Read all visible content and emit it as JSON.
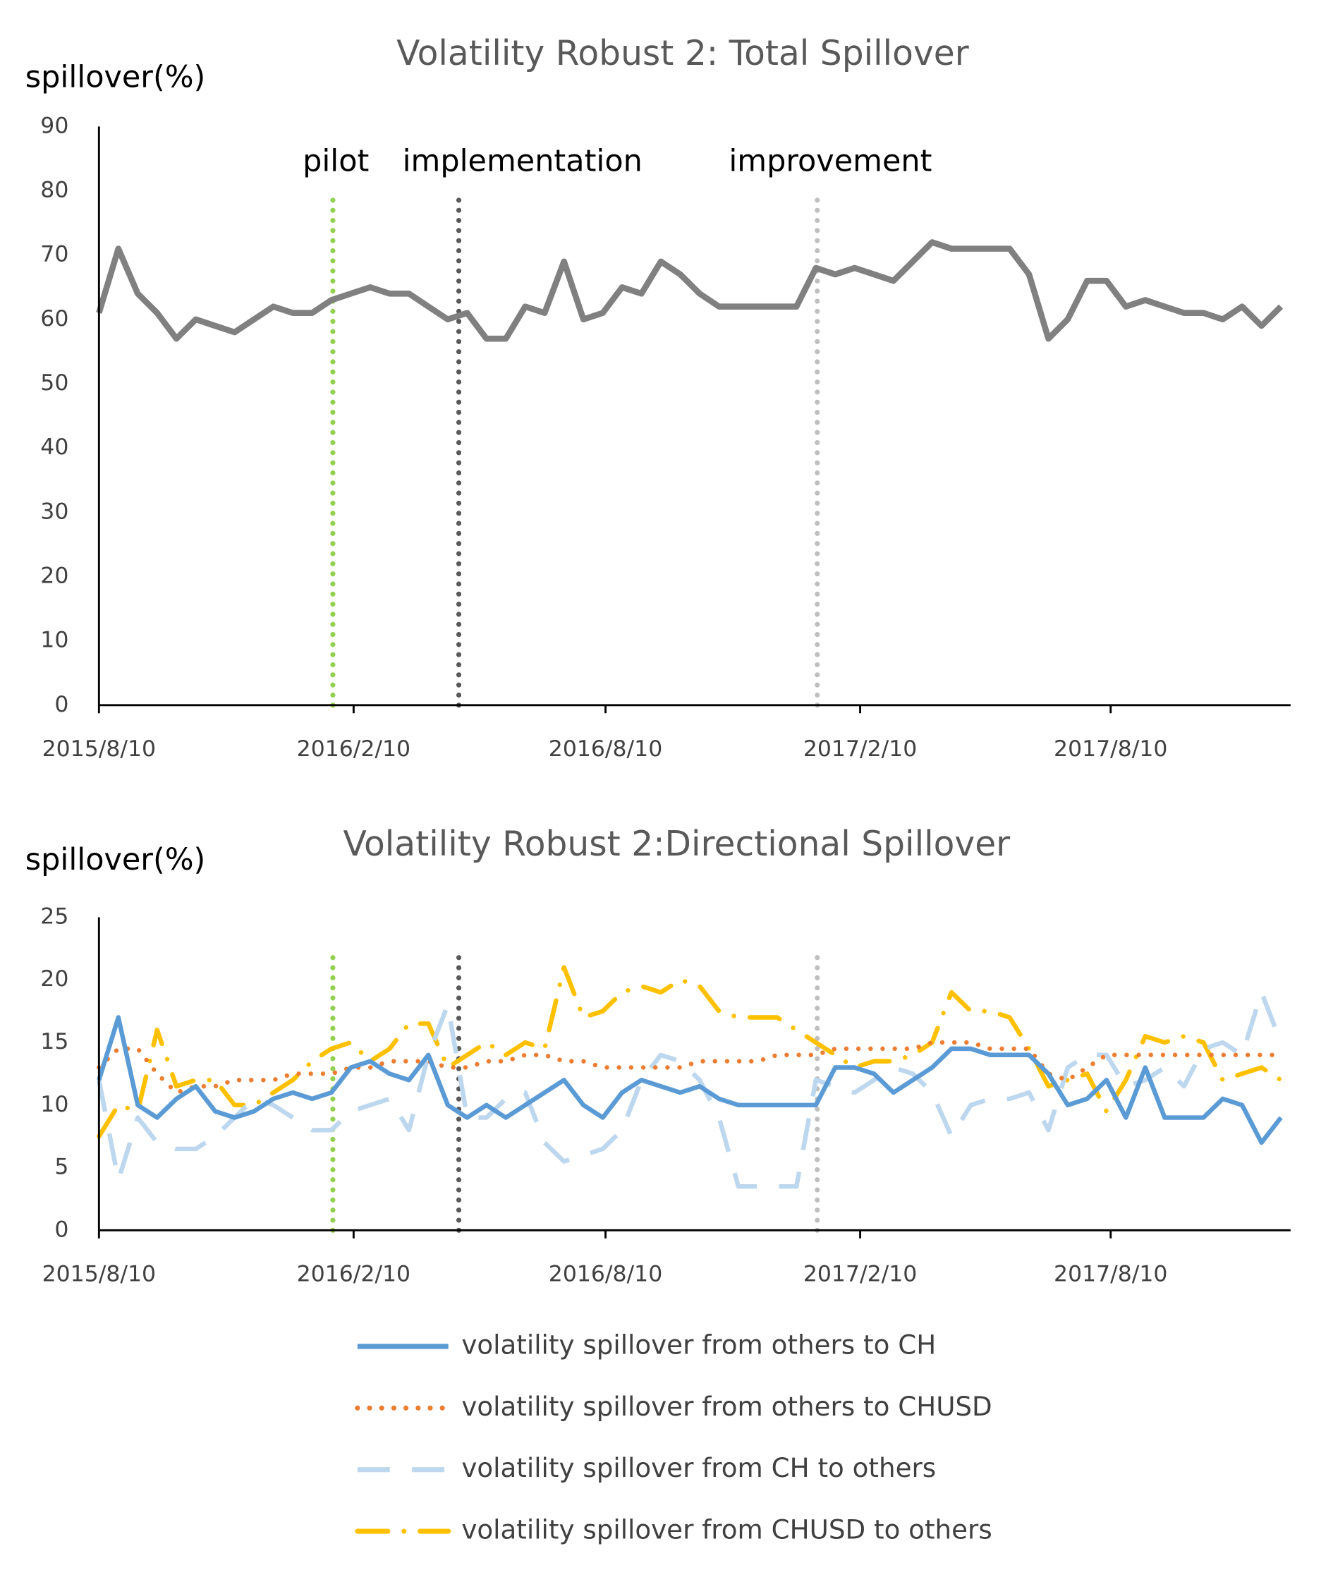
{
  "chart_data": [
    {
      "type": "line",
      "title": "Volatility Robust 2: Total Spillover",
      "ylabel": "spillover(%)",
      "x": [
        "2015/8/10",
        "2015/8/24",
        "2015/9/7",
        "2015/9/21",
        "2015/10/5",
        "2015/10/19",
        "2015/11/2",
        "2015/11/16",
        "2015/11/30",
        "2015/12/14",
        "2015/12/28",
        "2016/1/11",
        "2016/1/25",
        "2016/2/8",
        "2016/2/22",
        "2016/3/7",
        "2016/3/21",
        "2016/4/4",
        "2016/4/18",
        "2016/5/2",
        "2016/5/16",
        "2016/5/30",
        "2016/6/13",
        "2016/6/27",
        "2016/7/11",
        "2016/7/25",
        "2016/8/8",
        "2016/8/22",
        "2016/9/5",
        "2016/9/19",
        "2016/10/3",
        "2016/10/17",
        "2016/10/31",
        "2016/11/14",
        "2016/11/28",
        "2016/12/12",
        "2016/12/26",
        "2017/1/9",
        "2017/1/23",
        "2017/2/6",
        "2017/2/20",
        "2017/3/6",
        "2017/3/20",
        "2017/4/3",
        "2017/4/17",
        "2017/5/1",
        "2017/5/15",
        "2017/5/29",
        "2017/6/12",
        "2017/6/26",
        "2017/7/10",
        "2017/7/24",
        "2017/8/7",
        "2017/8/21",
        "2017/9/4",
        "2017/9/18",
        "2017/10/2",
        "2017/10/16",
        "2017/10/30",
        "2017/11/13",
        "2017/11/27",
        "2017/12/11"
      ],
      "series": [
        {
          "color": "#808080",
          "style": "solid",
          "values": [
            61,
            71,
            64,
            61,
            57,
            60,
            59,
            58,
            60,
            62,
            61,
            61,
            63,
            64,
            65,
            64,
            64,
            62,
            60,
            61,
            57,
            57,
            62,
            61,
            69,
            60,
            61,
            65,
            64,
            69,
            67,
            64,
            62,
            62,
            62,
            62,
            62,
            68,
            67,
            68,
            67,
            66,
            69,
            72,
            71,
            71,
            71,
            71,
            67,
            57,
            60,
            66,
            66,
            62,
            63,
            62,
            61,
            61,
            60,
            62,
            59,
            62
          ]
        }
      ],
      "xlim": [
        "2015/8/10",
        "2017/12/18"
      ],
      "xticks": [
        "2015/8/10",
        "2016/2/10",
        "2016/8/10",
        "2017/2/10",
        "2017/8/10"
      ],
      "ylim": [
        0,
        90
      ],
      "yticks": [
        0,
        10,
        20,
        30,
        40,
        50,
        60,
        70,
        80,
        90
      ],
      "grid": false,
      "events": [
        {
          "label": "pilot",
          "x": "2016/1/26",
          "color": "#92d050"
        },
        {
          "label": "implementation",
          "x": "2016/4/26",
          "color": "#595959"
        },
        {
          "label": "improvement",
          "x": "2017/1/10",
          "color": "#bfbfbf"
        }
      ]
    },
    {
      "type": "line",
      "title": "Volatility Robust 2:Directional  Spillover",
      "ylabel": "spillover(%)",
      "x": [
        "2015/8/10",
        "2015/8/24",
        "2015/9/7",
        "2015/9/21",
        "2015/10/5",
        "2015/10/19",
        "2015/11/2",
        "2015/11/16",
        "2015/11/30",
        "2015/12/14",
        "2015/12/28",
        "2016/1/11",
        "2016/1/25",
        "2016/2/8",
        "2016/2/22",
        "2016/3/7",
        "2016/3/21",
        "2016/4/4",
        "2016/4/18",
        "2016/5/2",
        "2016/5/16",
        "2016/5/30",
        "2016/6/13",
        "2016/6/27",
        "2016/7/11",
        "2016/7/25",
        "2016/8/8",
        "2016/8/22",
        "2016/9/5",
        "2016/9/19",
        "2016/10/3",
        "2016/10/17",
        "2016/10/31",
        "2016/11/14",
        "2016/11/28",
        "2016/12/12",
        "2016/12/26",
        "2017/1/9",
        "2017/1/23",
        "2017/2/6",
        "2017/2/20",
        "2017/3/6",
        "2017/3/20",
        "2017/4/3",
        "2017/4/17",
        "2017/5/1",
        "2017/5/15",
        "2017/5/29",
        "2017/6/12",
        "2017/6/26",
        "2017/7/10",
        "2017/7/24",
        "2017/8/7",
        "2017/8/21",
        "2017/9/4",
        "2017/9/18",
        "2017/10/2",
        "2017/10/16",
        "2017/10/30",
        "2017/11/13",
        "2017/11/27",
        "2017/12/11"
      ],
      "series": [
        {
          "name": "volatility spillover from others to CH",
          "color": "#5b9bd5",
          "style": "solid",
          "values": [
            12,
            17,
            10,
            9,
            10.5,
            11.5,
            9.5,
            9,
            9.5,
            10.5,
            11,
            10.5,
            11,
            13,
            13.5,
            12.5,
            12,
            14,
            10,
            9,
            10,
            9,
            10,
            11,
            12,
            10,
            9,
            11,
            12,
            11.5,
            11,
            11.5,
            10.5,
            10,
            10,
            10,
            10,
            10,
            13,
            13,
            12.5,
            11,
            12,
            13,
            14.5,
            14.5,
            14,
            14,
            14,
            12.5,
            10,
            10.5,
            12,
            9,
            13,
            9,
            9,
            9,
            10.5,
            10,
            7,
            9
          ]
        },
        {
          "name": "volatility spillover from others to CHUSD",
          "color": "#ed7d31",
          "style": "dotted",
          "values": [
            13,
            14.5,
            14.5,
            12.5,
            11,
            11.5,
            11.5,
            12,
            12,
            12,
            12.5,
            12.5,
            12.5,
            13,
            13,
            13.5,
            13.5,
            13.5,
            13,
            13,
            13.5,
            13.5,
            14,
            14,
            13.5,
            13.5,
            13,
            13,
            13,
            13,
            13,
            13.5,
            13.5,
            13.5,
            13.5,
            14,
            14,
            14,
            14.5,
            14.5,
            14.5,
            14.5,
            14.5,
            15,
            15,
            15,
            14.5,
            14.5,
            14.5,
            12.5,
            12,
            13,
            14,
            14,
            14,
            14,
            14,
            14,
            14,
            14,
            14,
            14
          ]
        },
        {
          "name": "volatility spillover from CH to others",
          "color": "#bdd7ee",
          "style": "dashed",
          "values": [
            12,
            4,
            9,
            7,
            6.5,
            6.5,
            7.5,
            9,
            10.5,
            10,
            9,
            8,
            8,
            9.5,
            10,
            10.5,
            8,
            14,
            18,
            9,
            9,
            10.5,
            11,
            7,
            5.5,
            6,
            6.5,
            8,
            12,
            14,
            13.5,
            12,
            9,
            3.5,
            3.5,
            3.5,
            3.5,
            12,
            11.5,
            11,
            12,
            13,
            12.5,
            11,
            7.5,
            10,
            10.5,
            10.5,
            11,
            8,
            13,
            14,
            14,
            11.5,
            12,
            13,
            11.5,
            14.5,
            15,
            14,
            19,
            15
          ]
        },
        {
          "name": "volatility spillover from CHUSD to others",
          "color": "#ffc000",
          "style": "dashdot",
          "values": [
            7.5,
            10,
            9.5,
            16,
            11.5,
            12,
            12,
            10,
            10,
            11,
            12,
            13.5,
            14.5,
            15,
            13.5,
            14.5,
            16.5,
            16.5,
            13,
            14,
            15,
            14,
            15,
            14.5,
            21,
            17,
            17.5,
            19,
            19.5,
            19,
            20,
            19.5,
            17.5,
            17,
            17,
            17,
            16,
            15,
            14,
            13,
            13.5,
            13.5,
            14,
            15,
            19,
            17.5,
            17.5,
            17,
            14.5,
            11.5,
            12,
            12.5,
            9.5,
            12,
            15.5,
            15,
            15.5,
            15,
            12,
            12.5,
            13,
            12
          ]
        }
      ],
      "xlim": [
        "2015/8/10",
        "2017/12/18"
      ],
      "xticks": [
        "2015/8/10",
        "2016/2/10",
        "2016/8/10",
        "2017/2/10",
        "2017/8/10"
      ],
      "ylim": [
        0,
        25
      ],
      "yticks": [
        0,
        5,
        10,
        15,
        20,
        25
      ],
      "grid": false,
      "events": [
        {
          "x": "2016/1/26",
          "color": "#92d050"
        },
        {
          "x": "2016/4/26",
          "color": "#595959"
        },
        {
          "x": "2017/1/10",
          "color": "#bfbfbf"
        }
      ]
    }
  ]
}
